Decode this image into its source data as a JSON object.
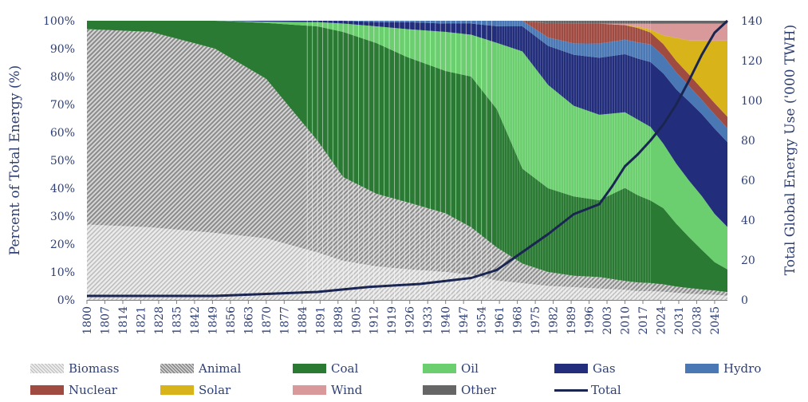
{
  "chart_data": {
    "type": "area",
    "stacked": true,
    "normalized": true,
    "ylabel_left": "Percent of Total Energy (%)",
    "ylabel_right": "Total Global Energy Use ('000 TWH)",
    "ylim_left": [
      0,
      100
    ],
    "ylim_right": [
      0,
      140
    ],
    "yticks_left": [
      "0%",
      "10%",
      "20%",
      "30%",
      "40%",
      "50%",
      "60%",
      "70%",
      "80%",
      "90%",
      "100%"
    ],
    "yticks_right": [
      "0",
      "20",
      "40",
      "60",
      "80",
      "100",
      "120",
      "140"
    ],
    "xlim": [
      1800,
      2050
    ],
    "xticks": [
      "1800",
      "1807",
      "1814",
      "1821",
      "1828",
      "1835",
      "1842",
      "1849",
      "1856",
      "1863",
      "1870",
      "1877",
      "1884",
      "1891",
      "1898",
      "1905",
      "1912",
      "1919",
      "1926",
      "1933",
      "1940",
      "1947",
      "1954",
      "1961",
      "1968",
      "1975",
      "1982",
      "1989",
      "1996",
      "2003",
      "2010",
      "2017",
      "2024",
      "2031",
      "2038",
      "2045"
    ],
    "x": [
      1800,
      1825,
      1850,
      1870,
      1890,
      1900,
      1913,
      1925,
      1940,
      1950,
      1960,
      1970,
      1980,
      1990,
      2000,
      2010,
      2015,
      2020,
      2025,
      2030,
      2035,
      2040,
      2045,
      2050
    ],
    "series": [
      {
        "name": "Biomass",
        "key": "biomass",
        "values": [
          27,
          26,
          24,
          22,
          17,
          14,
          12,
          11,
          10,
          9,
          7,
          6,
          5,
          4.5,
          4,
          3.5,
          3,
          3,
          2.8,
          2.5,
          2.2,
          2,
          1.8,
          1.5
        ]
      },
      {
        "name": "Animal",
        "key": "animal",
        "values": [
          70,
          70,
          66,
          57,
          40,
          30,
          26,
          24,
          21,
          17,
          12,
          7,
          5,
          4,
          4,
          3,
          3,
          2.7,
          2.5,
          2.2,
          2,
          1.7,
          1.5,
          1.3
        ]
      },
      {
        "name": "Coal",
        "key": "coal",
        "values": [
          3,
          4,
          10,
          20,
          41,
          52,
          54,
          52,
          51,
          54,
          50,
          34,
          30,
          28,
          27,
          32,
          30,
          28,
          26,
          22,
          18,
          14,
          10,
          8
        ]
      },
      {
        "name": "Oil",
        "key": "oil",
        "values": [
          0,
          0,
          0,
          0.5,
          1.5,
          3,
          6,
          10,
          14,
          15,
          24,
          42,
          37,
          32,
          30,
          26,
          26,
          25,
          22,
          21,
          20,
          19,
          17,
          15
        ]
      },
      {
        "name": "Gas",
        "key": "gas",
        "values": [
          0,
          0,
          0,
          0.3,
          0.5,
          1,
          1.5,
          2.5,
          3,
          4,
          6,
          9,
          14,
          18,
          20,
          20,
          21,
          22,
          24,
          26,
          28,
          29,
          30,
          30
        ]
      },
      {
        "name": "Hydro",
        "key": "hydro",
        "values": [
          0,
          0,
          0,
          0,
          0,
          0,
          0.5,
          0.5,
          1,
          1,
          2,
          2,
          3,
          4,
          5,
          5,
          5.5,
          6,
          6,
          6,
          5.5,
          5,
          5,
          5
        ]
      },
      {
        "name": "Nuclear",
        "key": "nuclear",
        "values": [
          0,
          0,
          0,
          0,
          0,
          0,
          0,
          0,
          0,
          0,
          0,
          0,
          5,
          7,
          7,
          5,
          5,
          4,
          4,
          4,
          4,
          4,
          4,
          4
        ]
      },
      {
        "name": "Solar",
        "key": "solar",
        "values": [
          0,
          0,
          0,
          0,
          0,
          0,
          0,
          0,
          0,
          0,
          0,
          0,
          0,
          0,
          0,
          0,
          0.5,
          1,
          3,
          8,
          12,
          17,
          22,
          27
        ]
      },
      {
        "name": "Wind",
        "key": "wind",
        "values": [
          0,
          0,
          0,
          0,
          0,
          0,
          0,
          0,
          0,
          0,
          0,
          0,
          0,
          0,
          0,
          0.5,
          1,
          2,
          4,
          5,
          6,
          6,
          6,
          6
        ]
      },
      {
        "name": "Other",
        "key": "other",
        "values": [
          0,
          0,
          0,
          0,
          0,
          0,
          0,
          0,
          0,
          0,
          0,
          0,
          1,
          1,
          1,
          1,
          1,
          1,
          1,
          1,
          1,
          1,
          1,
          1
        ]
      }
    ],
    "total": {
      "name": "Total",
      "axis": "right",
      "x": [
        1800,
        1820,
        1850,
        1870,
        1890,
        1910,
        1930,
        1950,
        1960,
        1970,
        1980,
        1990,
        2000,
        2005,
        2010,
        2015,
        2020,
        2025,
        2030,
        2035,
        2040,
        2045,
        2050
      ],
      "values": [
        2,
        2,
        2,
        3,
        4,
        6.5,
        8,
        11,
        15,
        24,
        33,
        43,
        48,
        57,
        67,
        73,
        80,
        88,
        98,
        110,
        123,
        134,
        140
      ]
    },
    "colors": {
      "biomass": "#d2d2d2",
      "animal": "#8e8e8e",
      "coal": "#2a7a33",
      "oil": "#6ccf6f",
      "gas": "#222e7c",
      "hydro": "#4a78b5",
      "nuclear": "#a04b42",
      "solar": "#d8b31a",
      "wind": "#d9999a",
      "other": "#666666",
      "total": "#1a2552",
      "text": "#2e3f74"
    }
  },
  "legend": [
    {
      "label": "Biomass",
      "key": "biomass"
    },
    {
      "label": "Animal",
      "key": "animal"
    },
    {
      "label": "Coal",
      "key": "coal"
    },
    {
      "label": "Oil",
      "key": "oil"
    },
    {
      "label": "Gas",
      "key": "gas"
    },
    {
      "label": "Hydro",
      "key": "hydro"
    },
    {
      "label": "Nuclear",
      "key": "nuclear"
    },
    {
      "label": "Solar",
      "key": "solar"
    },
    {
      "label": "Wind",
      "key": "wind"
    },
    {
      "label": "Other",
      "key": "other"
    },
    {
      "label": "Total",
      "key": "total"
    }
  ]
}
